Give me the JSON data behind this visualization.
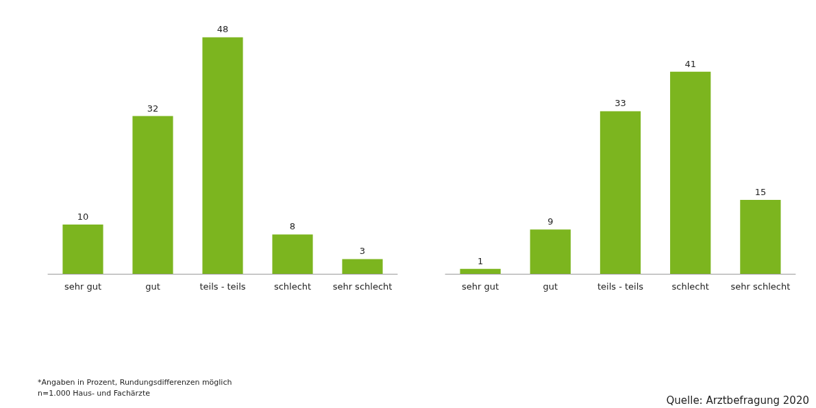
{
  "chart_data": [
    {
      "type": "bar",
      "categories": [
        "sehr gut",
        "gut",
        "teils - teils",
        "schlecht",
        "sehr schlecht"
      ],
      "values": [
        10,
        32,
        48,
        8,
        3
      ],
      "color": "#7cb51f",
      "data_labels": true,
      "annotations": [
        "*Angaben in Prozent, Rundungsdifferenzen möglich",
        "n=1.000 Haus- und Fachärzte"
      ]
    },
    {
      "type": "bar",
      "categories": [
        "sehr gut",
        "gut",
        "teils - teils",
        "schlecht",
        "sehr schlecht"
      ],
      "values": [
        1,
        9,
        33,
        41,
        15
      ],
      "color": "#7cb51f",
      "data_labels": true,
      "annotations": [
        "Quelle: Arztbefragung 2020"
      ]
    }
  ]
}
